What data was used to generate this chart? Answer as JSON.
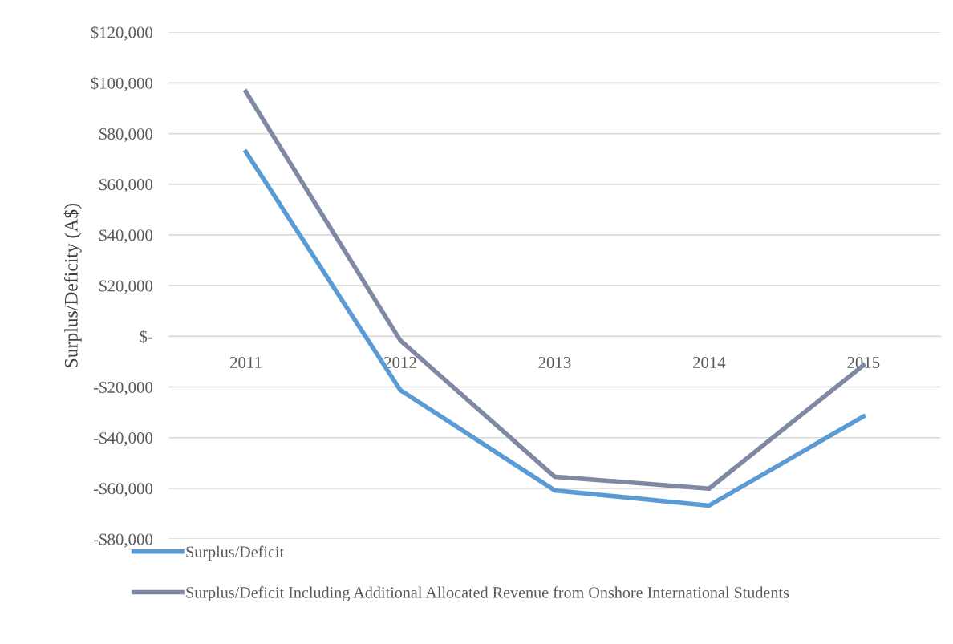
{
  "chart_data": {
    "type": "line",
    "ylabel": "Surplus/Deficity (A$)",
    "categories": [
      "2011",
      "2012",
      "2013",
      "2014",
      "2015"
    ],
    "series": [
      {
        "name": "Surplus/Deficit",
        "color": "#5b9bd5",
        "values": [
          72800,
          -21200,
          -60800,
          -66800,
          -31600
        ]
      },
      {
        "name": "Surplus/Deficit Including Additional Allocated Revenue from Onshore International Students",
        "color": "#7f89a3",
        "values": [
          96500,
          -1600,
          -55400,
          -60100,
          -11400
        ]
      }
    ],
    "ylim": [
      -80000,
      120000
    ],
    "yticks": [
      {
        "value": -80000,
        "label": "-$80,000"
      },
      {
        "value": -60000,
        "label": "-$60,000"
      },
      {
        "value": -40000,
        "label": "-$40,000"
      },
      {
        "value": -20000,
        "label": "-$20,000"
      },
      {
        "value": 0,
        "label": "$-"
      },
      {
        "value": 20000,
        "label": "$20,000"
      },
      {
        "value": 40000,
        "label": "$40,000"
      },
      {
        "value": 60000,
        "label": "$60,000"
      },
      {
        "value": 80000,
        "label": "$80,000"
      },
      {
        "value": 100000,
        "label": "$100,000"
      },
      {
        "value": 120000,
        "label": "$120,000"
      }
    ],
    "grid": "y",
    "legend": "bottom",
    "marker": "none",
    "line_style": "solid"
  }
}
